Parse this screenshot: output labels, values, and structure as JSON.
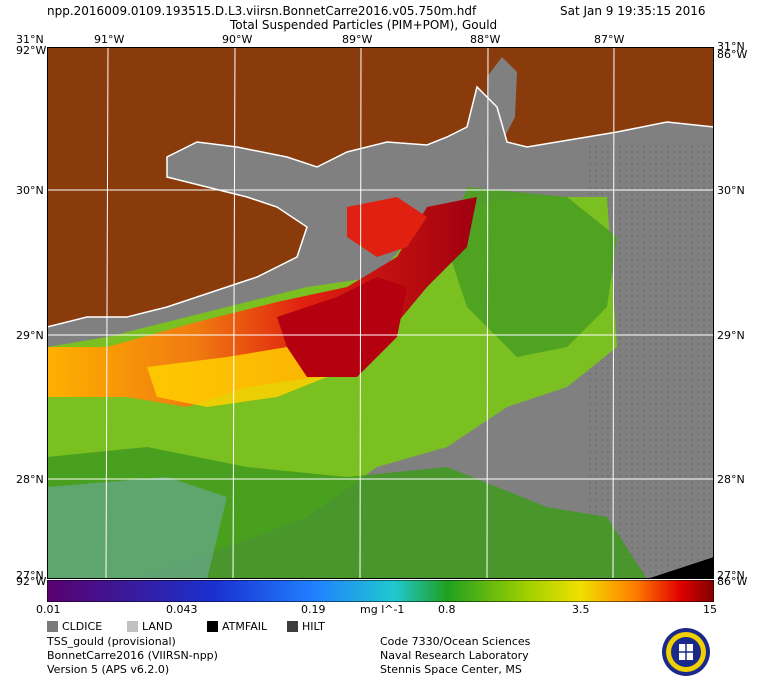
{
  "header": {
    "filename": "npp.2016009.0109.193515.D.L3.viirsn.BonnetCarre2016.v05.750m.hdf",
    "timestamp": "Sat Jan  9 19:35:15 2016",
    "product": "Total Suspended Particles (PIM+POM), Gould"
  },
  "map": {
    "lon_labels": [
      "91°W",
      "90°W",
      "89°W",
      "88°W",
      "87°W"
    ],
    "lat_labels": [
      "30°N",
      "29°N",
      "28°N"
    ],
    "corner_top_left_lat": "31°N",
    "corner_top_right_lat": "31°N",
    "corner_top_left_lon": "92°W",
    "corner_top_right_lon": "86°W",
    "corner_bottom_left_lat": "27°N",
    "corner_bottom_right_lat": "27°N",
    "corner_bottom_left_lon": "92°W",
    "corner_bottom_right_lon": "86°W",
    "colors": {
      "land": "#8a3b0c",
      "no_data": "#808080",
      "coast": "#ffffff"
    }
  },
  "colorbar": {
    "tick_labels": [
      "0.01",
      "0.043",
      "0.19",
      "0.8",
      "3.5",
      "15"
    ],
    "unit": "mg l^-1",
    "scale": "log"
  },
  "legend": {
    "items": [
      {
        "label": "CLDICE",
        "color": "#7a7a7a"
      },
      {
        "label": "LAND",
        "color": "#c0c0c0"
      },
      {
        "label": "ATMFAIL",
        "color": "#000000"
      },
      {
        "label": "HILT",
        "color": "#3c3c3c"
      }
    ]
  },
  "footer": {
    "left": [
      "TSS_gould (provisional)",
      "BonnetCarre2016 (VIIRSN-npp)",
      "Version 5 (APS v6.2.0)"
    ],
    "right": [
      "Code 7330/Ocean Sciences",
      "Naval Research Laboratory",
      "Stennis Space Center, MS"
    ]
  },
  "logo": {
    "name": "naval-research-laboratory-seal-icon"
  }
}
